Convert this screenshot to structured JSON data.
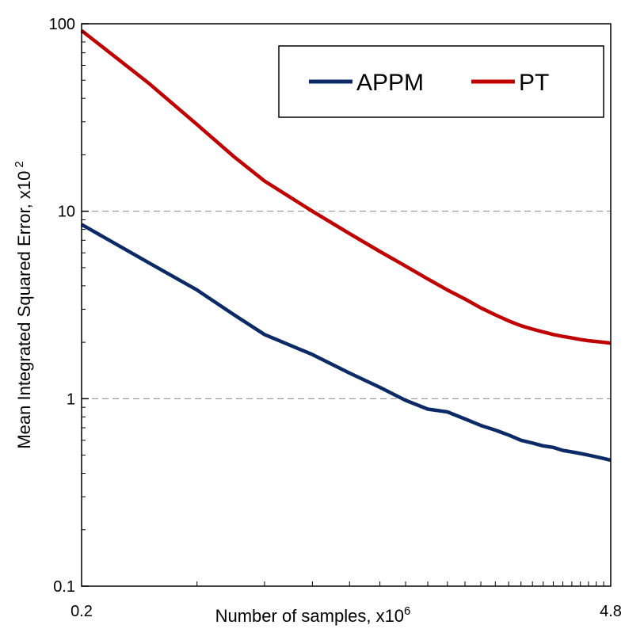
{
  "chart_data": {
    "type": "line",
    "xlabel": "Number of samples, x10",
    "xlabel_sup": "6",
    "ylabel": "Mean Integrated Squared Error, x10",
    "ylabel_sup": "2",
    "x_scale": "log",
    "y_scale": "log",
    "xlim": [
      0.2,
      4.8
    ],
    "ylim": [
      0.1,
      100
    ],
    "x_tick_labels": [
      {
        "value": 0.2,
        "label": "0.2"
      },
      {
        "value": 4.8,
        "label": "4.8"
      }
    ],
    "x_minor_ticks": [
      0.4,
      0.6,
      0.8,
      1,
      1.2,
      1.4,
      1.6,
      1.8,
      2,
      2.2,
      2.4,
      2.6,
      2.8,
      3,
      3.2,
      3.4,
      3.6,
      3.8,
      4,
      4.2,
      4.4,
      4.6
    ],
    "y_ticks": [
      {
        "value": 0.1,
        "label": "0.1"
      },
      {
        "value": 1,
        "label": "1"
      },
      {
        "value": 10,
        "label": "10"
      },
      {
        "value": 100,
        "label": "100"
      }
    ],
    "y_minor_ticks": [
      0.2,
      0.3,
      0.4,
      0.5,
      0.6,
      0.7,
      0.8,
      0.9,
      2,
      3,
      4,
      5,
      6,
      7,
      8,
      9,
      20,
      30,
      40,
      50,
      60,
      70,
      80,
      90
    ],
    "grid": {
      "horizontal_dashed_at": [
        1,
        10
      ]
    },
    "legend": {
      "position": "top-right",
      "orientation": "horizontal"
    },
    "series": [
      {
        "name": "APPM",
        "color": "#0b2a66",
        "x": [
          0.2,
          0.3,
          0.4,
          0.5,
          0.6,
          0.8,
          1.0,
          1.2,
          1.4,
          1.6,
          1.8,
          2.0,
          2.2,
          2.4,
          2.6,
          2.8,
          3.0,
          3.2,
          3.4,
          3.6,
          3.8,
          4.0,
          4.2,
          4.4,
          4.6,
          4.8
        ],
        "y": [
          8.5,
          5.3,
          3.8,
          2.8,
          2.2,
          1.72,
          1.37,
          1.15,
          0.98,
          0.88,
          0.85,
          0.78,
          0.72,
          0.68,
          0.64,
          0.6,
          0.58,
          0.56,
          0.55,
          0.53,
          0.52,
          0.51,
          0.5,
          0.49,
          0.48,
          0.47
        ]
      },
      {
        "name": "PT",
        "color": "#c00000",
        "x": [
          0.2,
          0.3,
          0.4,
          0.5,
          0.6,
          0.8,
          1.0,
          1.2,
          1.4,
          1.6,
          1.8,
          2.0,
          2.2,
          2.4,
          2.6,
          2.8,
          3.0,
          3.2,
          3.4,
          3.6,
          3.8,
          4.0,
          4.2,
          4.4,
          4.6,
          4.8
        ],
        "y": [
          92,
          48,
          29,
          19.5,
          14.5,
          10.0,
          7.6,
          6.1,
          5.1,
          4.35,
          3.8,
          3.4,
          3.05,
          2.8,
          2.6,
          2.45,
          2.35,
          2.27,
          2.2,
          2.15,
          2.11,
          2.07,
          2.04,
          2.02,
          2.0,
          1.98
        ]
      }
    ]
  }
}
